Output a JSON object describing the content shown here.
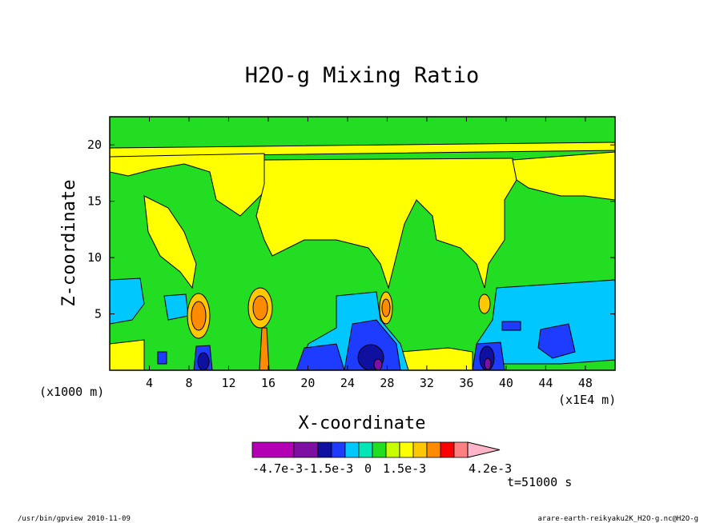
{
  "chart_data": {
    "type": "heatmap",
    "title": "H2O-g Mixing Ratio",
    "xlabel": "X-coordinate",
    "ylabel": "Z-coordinate",
    "x_unit_left": "(x1000 m)",
    "x_unit_right": "(x1E4 m)",
    "xlim": [
      0,
      51
    ],
    "ylim": [
      0,
      22.5
    ],
    "x_ticks": [
      "4",
      "8",
      "12",
      "16",
      "20",
      "24",
      "28",
      "32",
      "36",
      "40",
      "44",
      "48"
    ],
    "y_ticks": [
      "5",
      "10",
      "15",
      "20"
    ],
    "x_tick_values": [
      4,
      8,
      12,
      16,
      20,
      24,
      28,
      32,
      36,
      40,
      44,
      48
    ],
    "y_tick_values": [
      5,
      10,
      15,
      20
    ],
    "colorbar": {
      "colors": [
        "#b400b4",
        "#7d0fa3",
        "#0f0fa0",
        "#1e3cff",
        "#00c8ff",
        "#00e6b4",
        "#22dd22",
        "#c8ff00",
        "#ffff00",
        "#ffc800",
        "#ff8c00",
        "#ff0000",
        "#ff8080",
        "#ffb4c8"
      ],
      "labels": [
        "-4.7e-3",
        "-1.5e-3",
        "0",
        "1.5e-3",
        "4.2e-3"
      ]
    },
    "time_label": "t=51000 s"
  },
  "footer": {
    "left": "/usr/bin/gpview   2010-11-09",
    "right": "arare-earth-reikyaku2K_H2O-g.nc@H2O-g"
  }
}
